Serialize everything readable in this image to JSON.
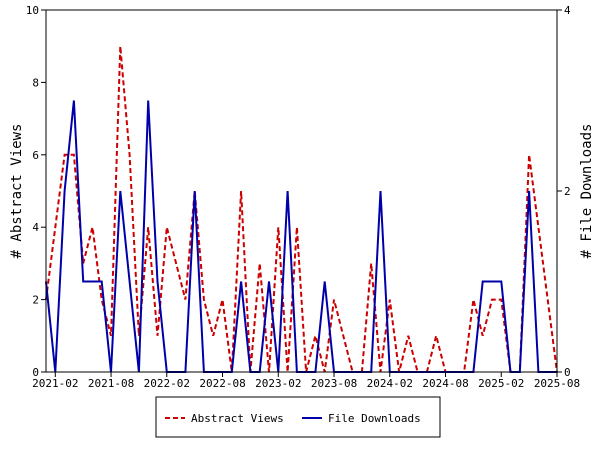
{
  "chart_data": {
    "type": "line",
    "x": [
      "2021-01",
      "2021-02",
      "2021-03",
      "2021-04",
      "2021-05",
      "2021-06",
      "2021-07",
      "2021-08",
      "2021-09",
      "2021-10",
      "2021-11",
      "2021-12",
      "2022-01",
      "2022-02",
      "2022-03",
      "2022-04",
      "2022-05",
      "2022-06",
      "2022-07",
      "2022-08",
      "2022-09",
      "2022-10",
      "2022-11",
      "2022-12",
      "2023-01",
      "2023-02",
      "2023-03",
      "2023-04",
      "2023-05",
      "2023-06",
      "2023-07",
      "2023-08",
      "2023-09",
      "2023-10",
      "2023-11",
      "2023-12",
      "2024-01",
      "2024-02",
      "2024-03",
      "2024-04",
      "2024-05",
      "2024-06",
      "2024-07",
      "2024-08",
      "2024-09",
      "2024-10",
      "2024-11",
      "2024-12",
      "2025-01",
      "2025-02",
      "2025-03",
      "2025-04",
      "2025-05",
      "2025-06",
      "2025-07",
      "2025-08"
    ],
    "xticks": [
      "2021-02",
      "2021-08",
      "2022-02",
      "2022-08",
      "2023-02",
      "2023-08",
      "2024-02",
      "2024-08",
      "2025-02",
      "2025-08"
    ],
    "y_left_label": "# Abstract Views",
    "y_right_label": "# File Downloads",
    "y_left_range": [
      0,
      10
    ],
    "y_left_ticks": [
      0,
      2,
      4,
      6,
      8,
      10
    ],
    "y_right_range": [
      0,
      4
    ],
    "y_right_ticks": [
      0,
      2,
      4
    ],
    "legend_position": "bottom",
    "series": [
      {
        "name": "Abstract Views",
        "axis": "left",
        "color": "#cc0000",
        "style": "dashed",
        "values": [
          2,
          4,
          6,
          6,
          3,
          4,
          2,
          1,
          9,
          6,
          1,
          4,
          1,
          4,
          3,
          2,
          5,
          2,
          1,
          2,
          0,
          5,
          0,
          3,
          0,
          4,
          0,
          4,
          0,
          1,
          0,
          2,
          1,
          0,
          0,
          3,
          0,
          2,
          0,
          1,
          0,
          0,
          1,
          0,
          0,
          0,
          2,
          1,
          2,
          2,
          0,
          0,
          6,
          4,
          2,
          0
        ]
      },
      {
        "name": "File Downloads",
        "axis": "right",
        "color": "#0000aa",
        "style": "solid",
        "values": [
          1,
          0,
          2,
          3,
          1,
          1,
          1,
          0,
          2,
          1,
          0,
          3,
          1,
          0,
          0,
          0,
          2,
          0,
          0,
          0,
          0,
          1,
          0,
          0,
          1,
          0,
          2,
          0,
          0,
          0,
          1,
          0,
          0,
          0,
          0,
          0,
          2,
          0,
          0,
          0,
          0,
          0,
          0,
          0,
          0,
          0,
          0,
          1,
          1,
          1,
          0,
          0,
          2,
          0,
          0,
          0
        ]
      }
    ]
  }
}
